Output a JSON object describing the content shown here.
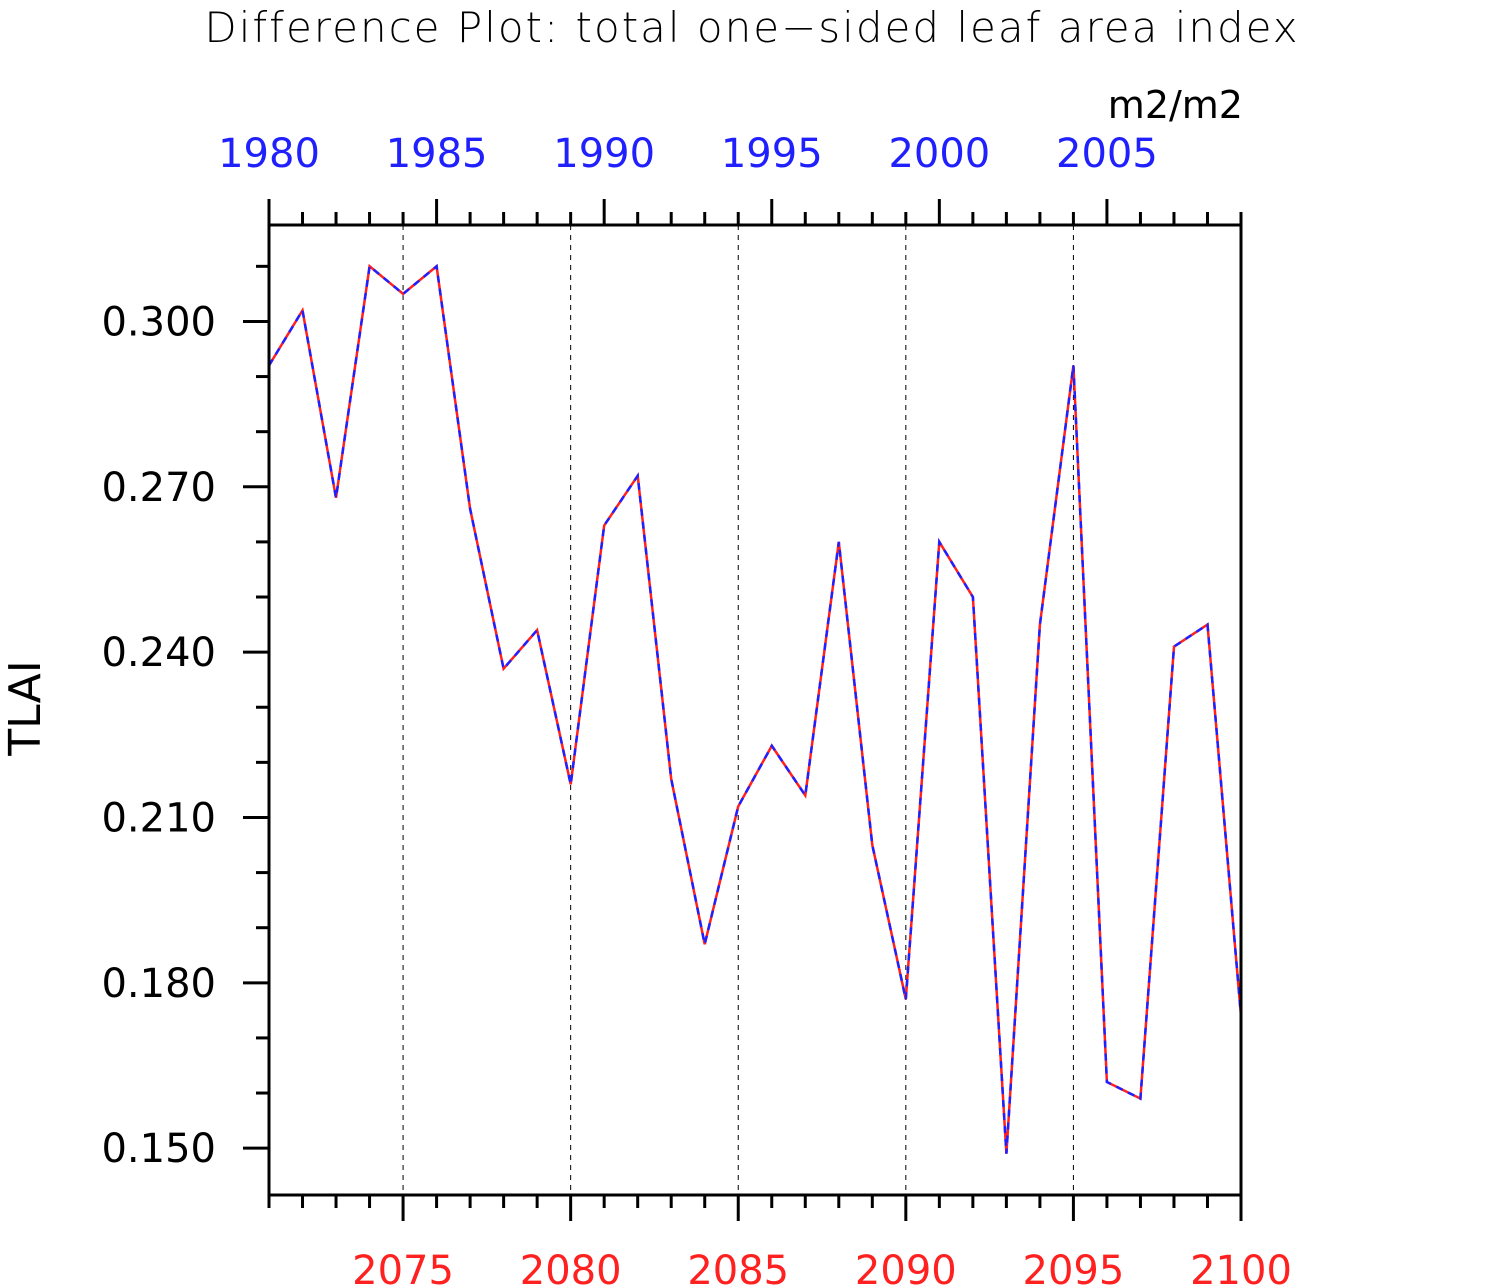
{
  "chart_data": {
    "type": "line",
    "title": "Difference Plot: total one−sided leaf area index",
    "units": "m2/m2",
    "ylabel": "TLAI",
    "ylim": [
      0.1415,
      0.3175
    ],
    "yticks": [
      0.15,
      0.18,
      0.21,
      0.24,
      0.27,
      0.3
    ],
    "ytick_labels": [
      "0.150",
      "0.180",
      "0.210",
      "0.240",
      "0.270",
      "0.300"
    ],
    "x_bottom": {
      "range": [
        2071,
        2100
      ],
      "ticks": [
        2075,
        2080,
        2085,
        2090,
        2095,
        2100
      ],
      "tick_labels": [
        "2075",
        "2080",
        "2085",
        "2090",
        "2095",
        "2100"
      ],
      "color": "#ff2020"
    },
    "x_top": {
      "range": [
        1980,
        2009
      ],
      "ticks": [
        1980,
        1985,
        1990,
        1995,
        2000,
        2005
      ],
      "tick_labels": [
        "1980",
        "1985",
        "1990",
        "1995",
        "2000",
        "2005"
      ],
      "color": "#2020ff"
    },
    "grid": "vertical dashed at major x ticks",
    "x": [
      2071,
      2072,
      2073,
      2074,
      2075,
      2076,
      2077,
      2078,
      2079,
      2080,
      2081,
      2082,
      2083,
      2084,
      2085,
      2086,
      2087,
      2088,
      2089,
      2090,
      2091,
      2092,
      2093,
      2094,
      2095,
      2096,
      2097,
      2098,
      2099,
      2100
    ],
    "series": [
      {
        "line_color": "#ff2020",
        "dash_color": "#2020ff",
        "values": [
          0.292,
          0.302,
          0.268,
          0.31,
          0.305,
          0.31,
          0.266,
          0.237,
          0.244,
          0.216,
          0.263,
          0.272,
          0.217,
          0.187,
          0.212,
          0.223,
          0.214,
          0.26,
          0.205,
          0.177,
          0.26,
          0.25,
          0.149,
          0.245,
          0.292,
          0.162,
          0.159,
          0.241,
          0.245,
          0.174
        ]
      }
    ]
  }
}
